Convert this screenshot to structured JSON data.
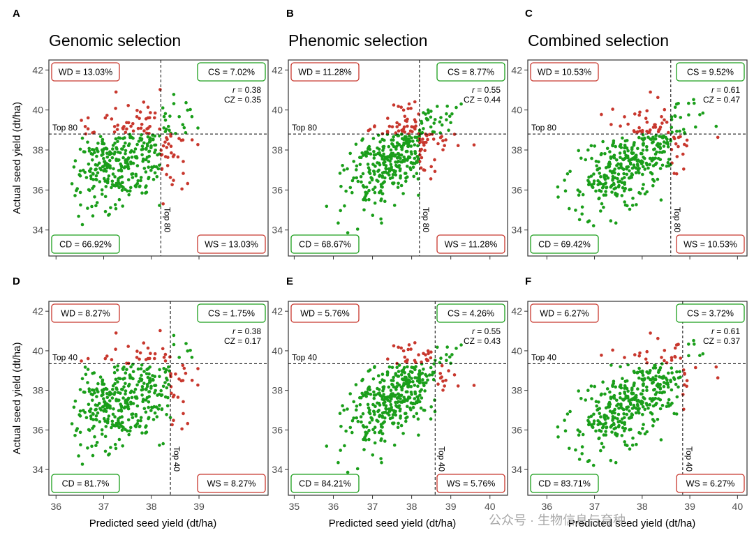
{
  "colors": {
    "selected_correct": "#1a9e1a",
    "misclassified": "#c8372d",
    "axis": "#333333"
  },
  "watermark": "公众号 · 生物信息与育种",
  "chart_data": [
    {
      "panel_label": "A",
      "title": "Genomic selection",
      "type": "scatter",
      "xlim": [
        35.85,
        40.45
      ],
      "ylim": [
        32.7,
        42.5
      ],
      "xticks": [
        36,
        37,
        38,
        39
      ],
      "yticks": [
        34,
        36,
        38,
        40,
        42
      ],
      "xlabel": "",
      "ylabel": "Actual seed yield (dt/ha)",
      "threshold_x": 38.2,
      "threshold_y": 38.8,
      "top_label": "Top 80",
      "quadrants": {
        "WD": "WD = 13.03%",
        "CS": "CS = 7.02%",
        "CD": "CD = 66.92%",
        "WS": "WS = 13.03%"
      },
      "r": "= 0.38",
      "cz": "CZ = 0.35",
      "point_cloud": {
        "n": 400,
        "x_mean": 37.45,
        "x_sd": 0.6,
        "y_mean": 37.6,
        "y_sd": 1.25,
        "corr": 0.38,
        "x_range": [
          36.3,
          39.0
        ],
        "y_range": [
          33.8,
          41.2
        ],
        "seed": 11
      }
    },
    {
      "panel_label": "B",
      "title": "Phenomic selection",
      "type": "scatter",
      "xlim": [
        34.85,
        40.45
      ],
      "ylim": [
        32.7,
        42.5
      ],
      "xticks": [
        35,
        36,
        37,
        38,
        39,
        40
      ],
      "yticks": [
        34,
        36,
        38,
        40,
        42
      ],
      "xlabel": "",
      "ylabel": "",
      "threshold_x": 38.2,
      "threshold_y": 38.8,
      "top_label": "Top 80",
      "quadrants": {
        "WD": "WD = 11.28%",
        "CS": "CS = 8.77%",
        "CD": "CD = 68.67%",
        "WS": "WS = 11.28%"
      },
      "r": "= 0.55",
      "cz": "CZ = 0.44",
      "point_cloud": {
        "n": 400,
        "x_mean": 37.55,
        "x_sd": 0.6,
        "y_mean": 37.6,
        "y_sd": 1.25,
        "corr": 0.55,
        "x_range": [
          35.7,
          39.8
        ],
        "y_range": [
          33.8,
          41.2
        ],
        "seed": 23
      }
    },
    {
      "panel_label": "C",
      "title": "Combined selection",
      "type": "scatter",
      "xlim": [
        35.6,
        40.2
      ],
      "ylim": [
        32.7,
        42.5
      ],
      "xticks": [
        36,
        37,
        38,
        39,
        40
      ],
      "yticks": [
        34,
        36,
        38,
        40,
        42
      ],
      "xlabel": "",
      "ylabel": "",
      "threshold_x": 38.6,
      "threshold_y": 38.8,
      "top_label": "Top 80",
      "quadrants": {
        "WD": "WD = 10.53%",
        "CS": "CS = 9.52%",
        "CD": "CD = 69.42%",
        "WS": "WS = 10.53%"
      },
      "r": "= 0.61",
      "cz": "CZ = 0.47",
      "point_cloud": {
        "n": 400,
        "x_mean": 37.85,
        "x_sd": 0.6,
        "y_mean": 37.6,
        "y_sd": 1.25,
        "corr": 0.61,
        "x_range": [
          36.2,
          39.8
        ],
        "y_range": [
          33.8,
          41.2
        ],
        "seed": 37
      }
    },
    {
      "panel_label": "D",
      "title": "",
      "type": "scatter",
      "xlim": [
        35.85,
        40.45
      ],
      "ylim": [
        32.7,
        42.5
      ],
      "xticks": [
        36,
        37,
        38,
        39
      ],
      "yticks": [
        34,
        36,
        38,
        40,
        42
      ],
      "xlabel": "Predicted seed yield (dt/ha)",
      "ylabel": "Actual seed yield (dt/ha)",
      "threshold_x": 38.4,
      "threshold_y": 39.35,
      "top_label": "Top 40",
      "quadrants": {
        "WD": "WD = 8.27%",
        "CS": "CS = 1.75%",
        "CD": "CD = 81.7%",
        "WS": "WS = 8.27%"
      },
      "r": "= 0.38",
      "cz": "CZ = 0.17",
      "point_cloud": {
        "n": 400,
        "x_mean": 37.45,
        "x_sd": 0.6,
        "y_mean": 37.6,
        "y_sd": 1.25,
        "corr": 0.38,
        "x_range": [
          36.3,
          39.0
        ],
        "y_range": [
          33.8,
          41.2
        ],
        "seed": 11
      }
    },
    {
      "panel_label": "E",
      "title": "",
      "type": "scatter",
      "xlim": [
        34.85,
        40.45
      ],
      "ylim": [
        32.7,
        42.5
      ],
      "xticks": [
        35,
        36,
        37,
        38,
        39,
        40
      ],
      "yticks": [
        34,
        36,
        38,
        40,
        42
      ],
      "xlabel": "Predicted seed yield (dt/ha)",
      "ylabel": "",
      "threshold_x": 38.6,
      "threshold_y": 39.35,
      "top_label": "Top 40",
      "quadrants": {
        "WD": "WD = 5.76%",
        "CS": "CS = 4.26%",
        "CD": "CD = 84.21%",
        "WS": "WS = 5.76%"
      },
      "r": "= 0.55",
      "cz": "CZ = 0.43",
      "point_cloud": {
        "n": 400,
        "x_mean": 37.55,
        "x_sd": 0.6,
        "y_mean": 37.6,
        "y_sd": 1.25,
        "corr": 0.55,
        "x_range": [
          35.7,
          39.8
        ],
        "y_range": [
          33.8,
          41.2
        ],
        "seed": 23
      }
    },
    {
      "panel_label": "F",
      "title": "",
      "type": "scatter",
      "xlim": [
        35.6,
        40.2
      ],
      "ylim": [
        32.7,
        42.5
      ],
      "xticks": [
        36,
        37,
        38,
        39,
        40
      ],
      "yticks": [
        34,
        36,
        38,
        40,
        42
      ],
      "xlabel": "Predicted seed yield (dt/ha)",
      "ylabel": "",
      "threshold_x": 38.85,
      "threshold_y": 39.35,
      "top_label": "Top 40",
      "quadrants": {
        "WD": "WD = 6.27%",
        "CS": "CS = 3.72%",
        "CD": "CD = 83.71%",
        "WS": "WS = 6.27%"
      },
      "r": "= 0.61",
      "cz": "CZ = 0.37",
      "point_cloud": {
        "n": 400,
        "x_mean": 37.85,
        "x_sd": 0.6,
        "y_mean": 37.6,
        "y_sd": 1.25,
        "corr": 0.61,
        "x_range": [
          36.2,
          39.8
        ],
        "y_range": [
          33.8,
          41.2
        ],
        "seed": 37
      }
    }
  ]
}
